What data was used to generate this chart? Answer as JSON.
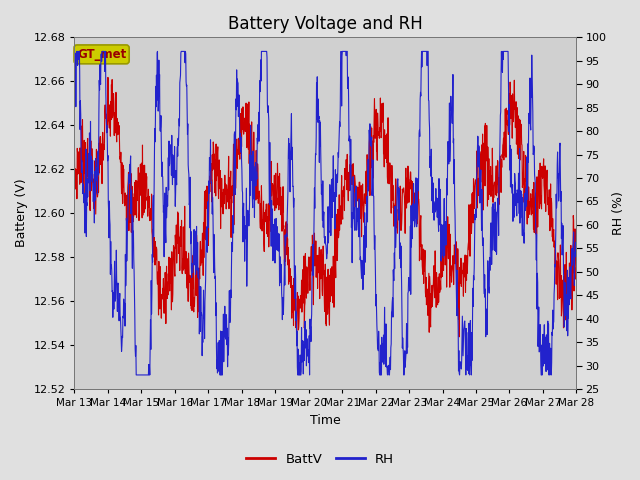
{
  "title": "Battery Voltage and RH",
  "xlabel": "Time",
  "ylabel_left": "Battery (V)",
  "ylabel_right": "RH (%)",
  "legend_label": "GT_met",
  "line1_label": "BattV",
  "line2_label": "RH",
  "line1_color": "#cc0000",
  "line2_color": "#2222cc",
  "ylim_left": [
    12.52,
    12.68
  ],
  "ylim_right": [
    25,
    100
  ],
  "yticks_left": [
    12.52,
    12.54,
    12.56,
    12.58,
    12.6,
    12.62,
    12.64,
    12.66,
    12.68
  ],
  "yticks_right": [
    25,
    30,
    35,
    40,
    45,
    50,
    55,
    60,
    65,
    70,
    75,
    80,
    85,
    90,
    95,
    100
  ],
  "xtick_labels": [
    "Mar 13",
    "Mar 14",
    "Mar 15",
    "Mar 16",
    "Mar 17",
    "Mar 18",
    "Mar 19",
    "Mar 20",
    "Mar 21",
    "Mar 22",
    "Mar 23",
    "Mar 24",
    "Mar 25",
    "Mar 26",
    "Mar 27",
    "Mar 28"
  ],
  "bg_color": "#e0e0e0",
  "plot_bg_color": "#d0d0d0",
  "title_fontsize": 12,
  "label_fontsize": 9,
  "tick_fontsize": 8,
  "legend_box_facecolor": "#cccc00",
  "legend_box_edgecolor": "#999900",
  "legend_text_color": "#990000"
}
